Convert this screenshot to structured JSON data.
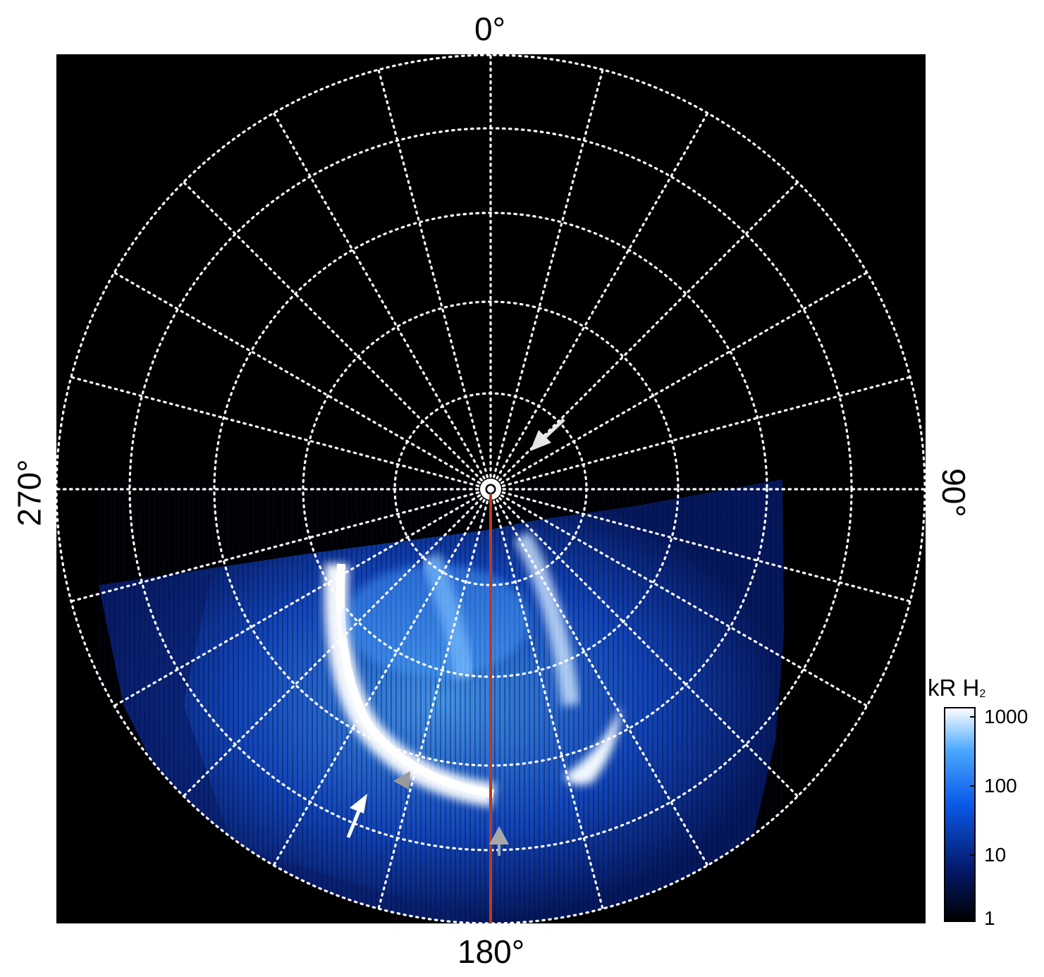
{
  "labels": {
    "top": "0°",
    "bottom": "180°",
    "left": "270°",
    "right": "90°"
  },
  "colorbar": {
    "title": "kR H",
    "title_sub": "2",
    "ticks": [
      "1000",
      "100",
      "10",
      "1"
    ],
    "scale": "log",
    "range": [
      1,
      1000
    ]
  },
  "colors": {
    "background": "#000000",
    "grid": "#ffffff",
    "meridian": "#c0391b",
    "arrow_white": "#ffffff",
    "arrow_gray": "#9a9a9a",
    "aurora_bright": "#e8f4ff",
    "aurora_mid": "#2f7fff",
    "aurora_dim": "#0a2a7a"
  }
}
